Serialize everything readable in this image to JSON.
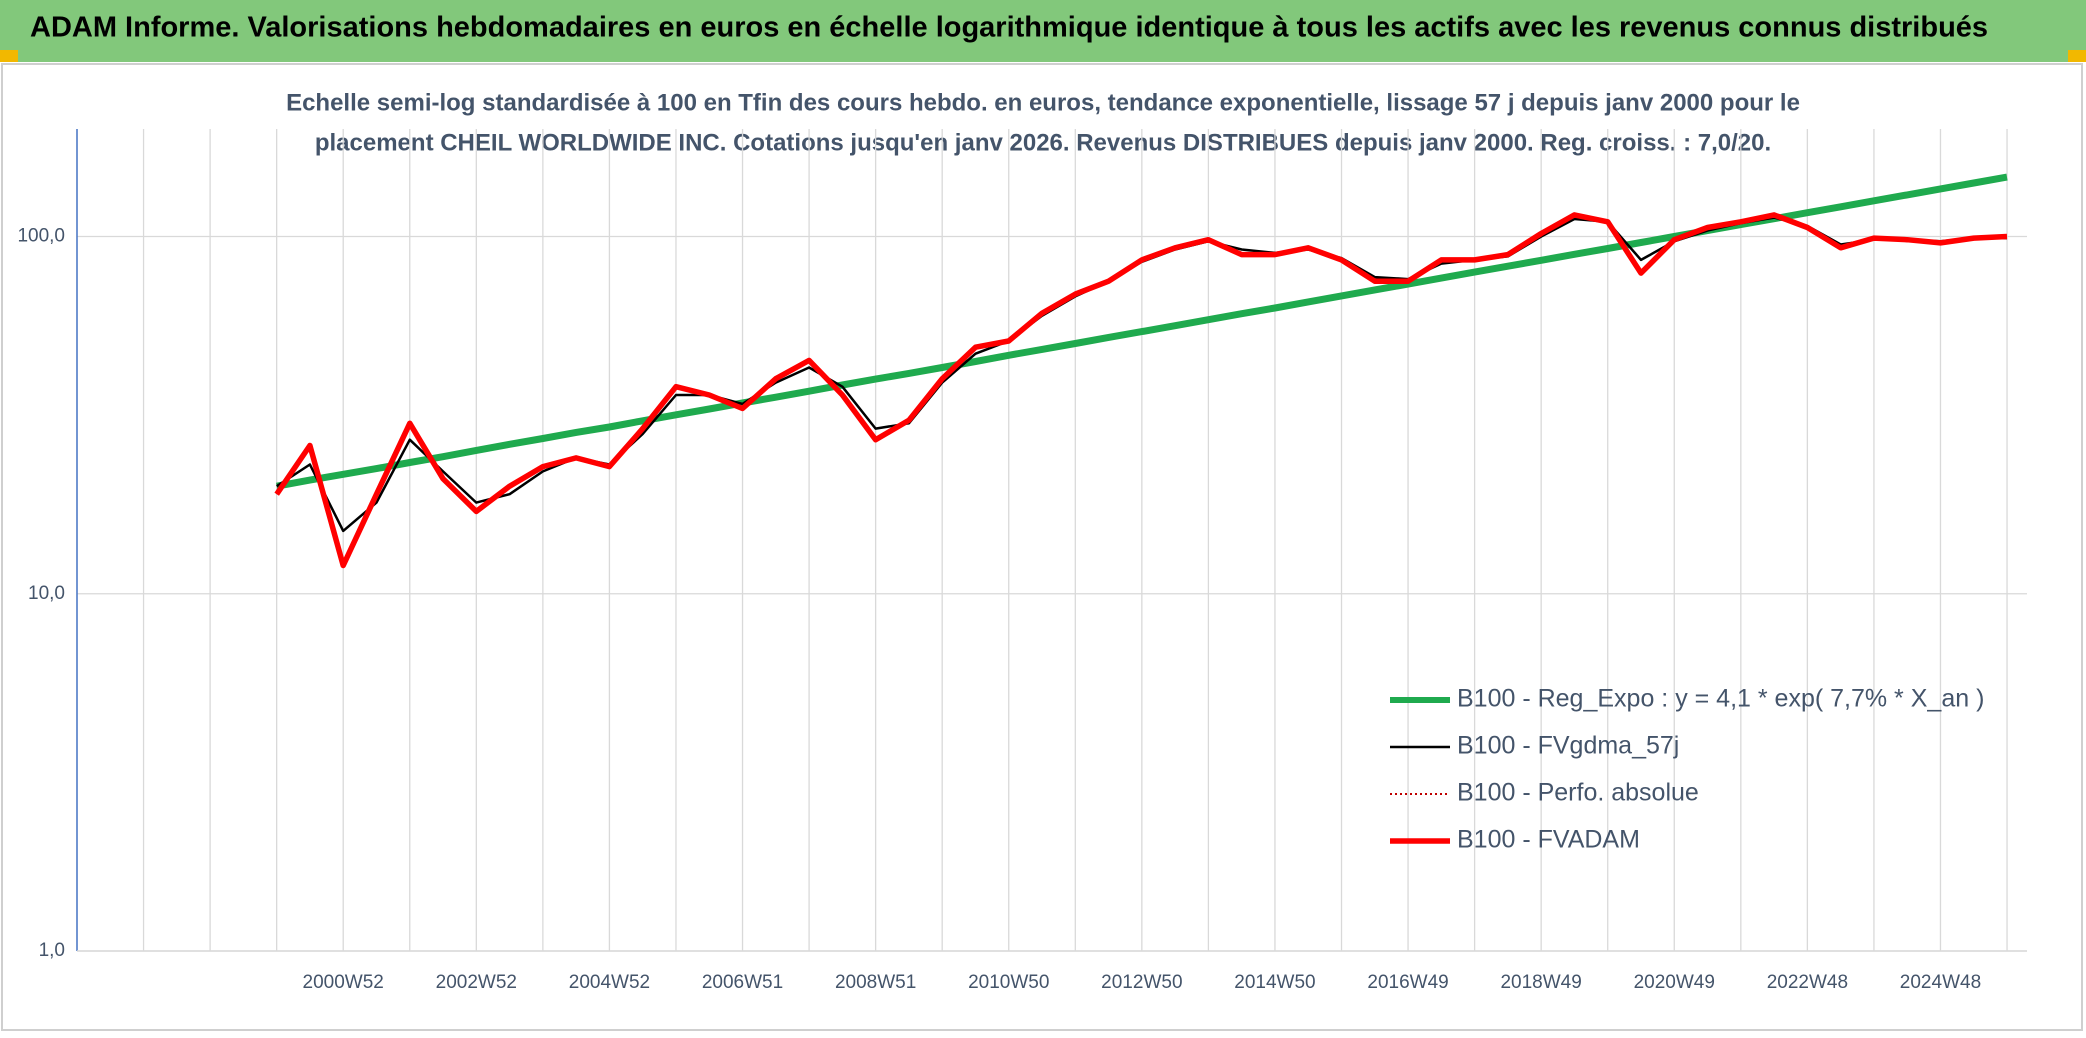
{
  "chart_data": {
    "type": "line",
    "title": "ADAM Informe. Valorisations hebdomadaires en euros en échelle logarithmique identique à tous les actifs avec les revenus connus distribués",
    "subtitle": [
      "Echelle semi-log standardisée à 100 en Tfin des cours hebdo. en euros, tendance exponentielle, lissage 57 j depuis janv 2000 pour le",
      "placement CHEIL WORLDWIDE INC. Cotations jusqu'en janv 2026. Revenus DISTRIBUES depuis janv 2000. Reg. croiss. : 7,0/20."
    ],
    "categories": [
      null,
      null,
      null,
      null,
      null,
      null,
      null,
      null,
      "2000W52",
      null,
      null,
      null,
      "2002W52",
      null,
      null,
      null,
      "2004W52",
      null,
      null,
      null,
      "2006W51",
      null,
      null,
      null,
      "2008W51",
      null,
      null,
      null,
      "2010W50",
      null,
      null,
      null,
      "2012W50",
      null,
      null,
      null,
      "2014W50",
      null,
      null,
      null,
      "2016W49",
      null,
      null,
      null,
      "2018W49",
      null,
      null,
      null,
      "2020W49",
      null,
      null,
      null,
      "2022W48",
      null,
      null,
      null,
      "2024W48",
      null,
      null
    ],
    "log_scale": true,
    "ylim": [
      1,
      200
    ],
    "yticks": [
      {
        "value": 1,
        "label": "1,0"
      },
      {
        "value": 10,
        "label": "10,0"
      },
      {
        "value": 100,
        "label": "100,0"
      }
    ],
    "grid": true,
    "legend": "lower right",
    "series": [
      {
        "name": "B100 - Reg_Expo : y = 4,1 * exp( 7,7% *  X_an )",
        "color": "#1faa4e",
        "line_style": "solid",
        "values": [
          null,
          null,
          null,
          null,
          null,
          null,
          20.0,
          20.8,
          21.6,
          22.4,
          23.3,
          24.2,
          25.2,
          26.2,
          27.2,
          28.3,
          29.3,
          30.5,
          31.7,
          32.9,
          34.2,
          35.5,
          36.9,
          38.4,
          39.9,
          41.4,
          43.0,
          44.7,
          46.5,
          48.3,
          50.2,
          52.2,
          54.2,
          56.3,
          58.5,
          60.8,
          63.1,
          65.6,
          68.2,
          70.9,
          73.6,
          76.5,
          79.5,
          82.6,
          85.8,
          89.2,
          92.6,
          96.2,
          100.0,
          103.9,
          108,
          112.2,
          116.6,
          121.1,
          125.9,
          130.8,
          135.9,
          141.2,
          146.7
        ]
      },
      {
        "name": "B100 - FVgdma_57j",
        "color": "#000000",
        "line_style": "solid",
        "values": [
          null,
          null,
          null,
          null,
          null,
          null,
          20,
          23,
          15,
          18,
          27,
          22,
          18,
          19,
          22,
          24,
          23,
          28,
          36,
          36,
          34,
          39,
          43,
          38,
          29,
          30,
          39,
          47,
          51,
          60,
          68,
          75,
          85,
          92,
          97,
          92,
          90,
          92,
          87,
          77,
          76,
          84,
          86,
          88,
          100,
          112,
          110,
          86,
          97,
          104,
          109,
          113,
          107,
          95,
          98,
          98,
          97,
          99,
          99
        ]
      },
      {
        "name": "B100 - Perfo. absolue",
        "color": "#c00000",
        "line_style": "dotted",
        "values": [
          null,
          null,
          null,
          null,
          null,
          null,
          19,
          26,
          12,
          19,
          30,
          21,
          17,
          20,
          22.7,
          24,
          22.7,
          29,
          38,
          36,
          33,
          40,
          45,
          36,
          27,
          30.6,
          40,
          49,
          51,
          61,
          69,
          75,
          86,
          93,
          98,
          89,
          89,
          93,
          86,
          75,
          75,
          86,
          86,
          89,
          102,
          115,
          110,
          79,
          98,
          106,
          110,
          115,
          106,
          93,
          99,
          98,
          96,
          99,
          100
        ]
      },
      {
        "name": "B100 - FVADAM",
        "color": "#ff0000",
        "line_style": "solid",
        "values": [
          null,
          null,
          null,
          null,
          null,
          null,
          19,
          26,
          12,
          19,
          30,
          21,
          17,
          20,
          22.7,
          24,
          22.7,
          29,
          38,
          36,
          33,
          40,
          45,
          36,
          27,
          30.6,
          40,
          49,
          51,
          61,
          69,
          75,
          86,
          93,
          98,
          89,
          89,
          93,
          86,
          75,
          75,
          86,
          86,
          89,
          102,
          115,
          110,
          79,
          98,
          106,
          110,
          115,
          106,
          93,
          99,
          98,
          96,
          99,
          100
        ]
      }
    ]
  }
}
